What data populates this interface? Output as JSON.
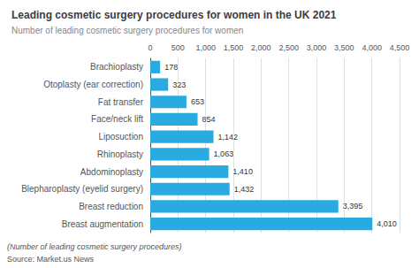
{
  "chart_data": {
    "type": "bar",
    "orientation": "horizontal",
    "title": "Leading cosmetic surgery procedures for women in the UK 2021",
    "subtitle": "Number of leading cosmetic surgery procedures for women",
    "annotations": [
      "(Number of leading cosmetic surgery procedures)",
      "Source: Market.us News"
    ],
    "categories": [
      "Breast augmentation",
      "Breast reduction",
      "Blepharoplasty (eyelid surgery)",
      "Abdominoplasty",
      "Rhinoplasty",
      "Liposuction",
      "Face/neck lift",
      "Fat transfer",
      "Otoplasty (ear correction)",
      "Brachioplasty"
    ],
    "values": [
      4010,
      3395,
      1432,
      1410,
      1063,
      1142,
      854,
      653,
      323,
      178
    ],
    "value_labels": [
      "4,010",
      "3,395",
      "1,432",
      "1,410",
      "1,063",
      "1,142",
      "854",
      "653",
      "323",
      "178"
    ],
    "data_labels": true,
    "color": "#29abe2",
    "xlim": [
      0,
      4500
    ],
    "xticks": [
      0,
      500,
      {
        "value": 1000,
        "label": "1,000"
      },
      {
        "value": 1500,
        "label": "1,500"
      },
      {
        "value": 2000,
        "label": "2,000"
      },
      {
        "value": 2500,
        "label": "2,500"
      },
      {
        "value": 3000,
        "label": "3,000"
      },
      {
        "value": 3500,
        "label": "3,500"
      },
      {
        "value": 4000,
        "label": "4,000"
      },
      {
        "value": 4500,
        "label": "4,500"
      }
    ],
    "grid": true
  }
}
